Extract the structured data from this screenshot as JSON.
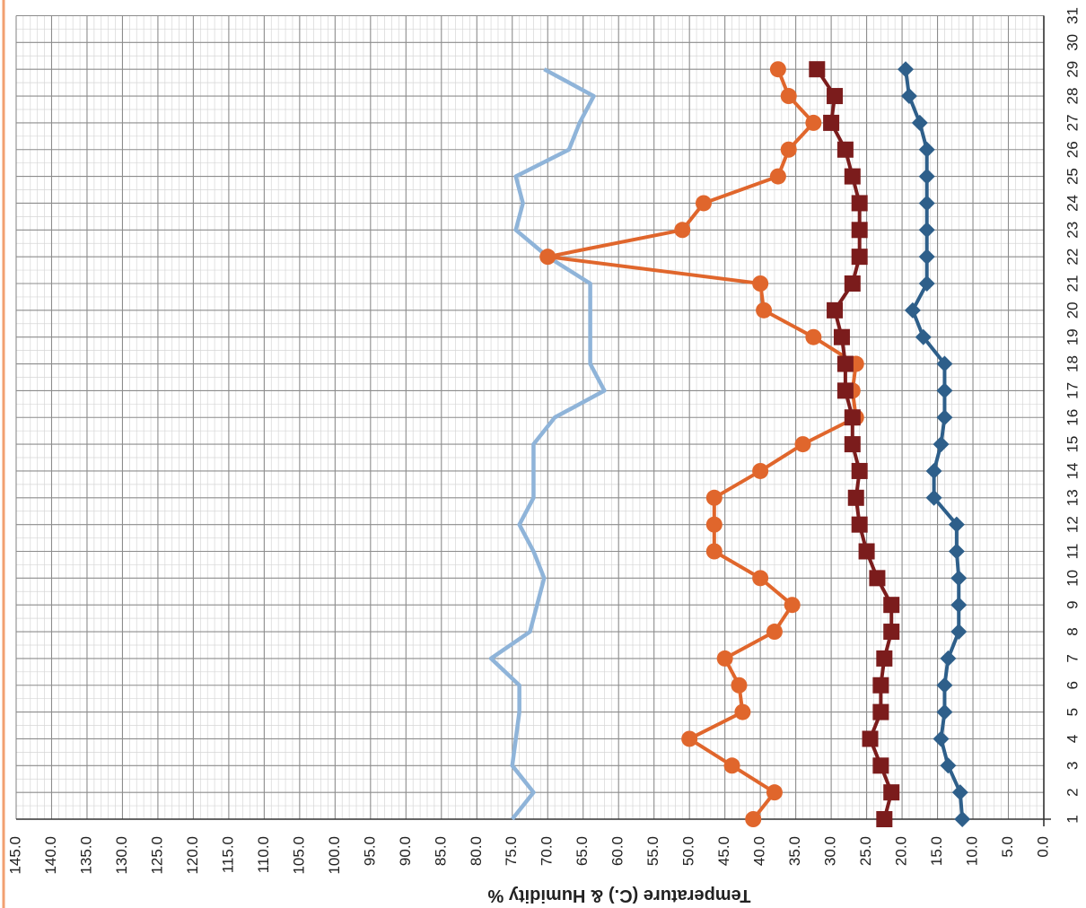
{
  "chart_data": {
    "type": "line",
    "orientation": "rotated-90",
    "title": "",
    "xlabel": "",
    "ylabel": "Temperature (C.) & Humidity %",
    "x": [
      1,
      2,
      3,
      4,
      5,
      6,
      7,
      8,
      9,
      10,
      11,
      12,
      13,
      14,
      15,
      16,
      17,
      18,
      19,
      20,
      21,
      22,
      23,
      24,
      25,
      26,
      27,
      28,
      29
    ],
    "x_ticks": [
      "1",
      "2",
      "3",
      "4",
      "5",
      "6",
      "7",
      "8",
      "9",
      "10",
      "11",
      "12",
      "13",
      "14",
      "15",
      "16",
      "17",
      "18",
      "19",
      "20",
      "21",
      "22",
      "23",
      "24",
      "25",
      "26",
      "27",
      "28",
      "29",
      "30",
      "31"
    ],
    "y_ticks": [
      "0.0",
      "5.0",
      "10.0",
      "15.0",
      "20.0",
      "25.0",
      "30.0",
      "35.0",
      "40.0",
      "45.0",
      "50.0",
      "55.0",
      "60.0",
      "65.0",
      "70.0",
      "75.0",
      "80.0",
      "85.0",
      "90.0",
      "95.0",
      "100.0",
      "105.0",
      "110.0",
      "115.0",
      "120.0",
      "125.0",
      "130.0",
      "135.0",
      "140.0",
      "145.0"
    ],
    "xlim": [
      1,
      31
    ],
    "ylim": [
      0,
      145
    ],
    "grid": true,
    "legend": "none",
    "series": [
      {
        "marker": "diamond",
        "color": "#2e5f8a",
        "values": [
          11.5,
          11.8,
          13.5,
          14.5,
          14.0,
          14.0,
          13.5,
          12.0,
          12.0,
          12.0,
          12.3,
          12.3,
          15.5,
          15.5,
          14.5,
          14.0,
          14.0,
          14.0,
          17.0,
          18.5,
          16.5,
          16.5,
          16.5,
          16.5,
          16.5,
          16.5,
          17.5,
          19.0,
          19.5
        ]
      },
      {
        "marker": "square",
        "color": "#7b1c1c",
        "values": [
          22.5,
          21.5,
          23.0,
          24.5,
          23.0,
          23.0,
          22.5,
          21.5,
          21.5,
          23.5,
          25.0,
          26.0,
          26.5,
          26.0,
          27.0,
          27.0,
          28.0,
          28.0,
          28.5,
          29.5,
          27.0,
          26.0,
          26.0,
          26.0,
          27.0,
          28.0,
          30.0,
          29.5,
          32.0
        ]
      },
      {
        "marker": "circle",
        "color": "#e0662c",
        "values": [
          41.0,
          38.0,
          44.0,
          50.0,
          42.5,
          43.0,
          45.0,
          38.0,
          35.5,
          40.0,
          46.5,
          46.5,
          46.5,
          40.0,
          34.0,
          26.5,
          27.0,
          26.5,
          32.5,
          39.5,
          40.0,
          70.0,
          51.0,
          48.0,
          37.5,
          36.0,
          32.5,
          36.0,
          37.5
        ]
      },
      {
        "marker": "none",
        "color": "#8fb4d9",
        "values": [
          75.0,
          72.0,
          75.0,
          74.5,
          74.0,
          74.0,
          78.0,
          72.5,
          71.5,
          70.5,
          72.0,
          74.0,
          72.0,
          72.0,
          72.0,
          69.0,
          62.0,
          64.0,
          64.0,
          64.0,
          64.0,
          70.0,
          74.5,
          73.5,
          74.5,
          67.0,
          65.5,
          63.5,
          70.5
        ]
      }
    ]
  }
}
